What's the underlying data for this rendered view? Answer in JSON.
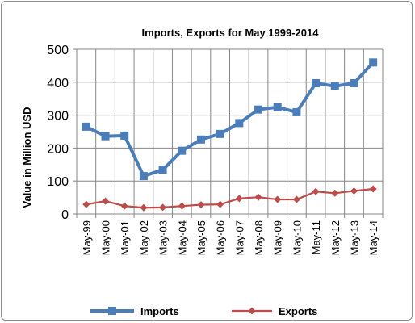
{
  "chart_data": {
    "type": "line",
    "title": "Imports, Exports for May 1999-2014",
    "xlabel": "",
    "ylabel": "Value in  Million  USD",
    "ylim": [
      0,
      500
    ],
    "yticks": [
      0,
      100,
      200,
      300,
      400,
      500
    ],
    "grid": true,
    "legend_position": "bottom",
    "categories": [
      "May-99",
      "May-00",
      "May-01",
      "May-02",
      "May-03",
      "May-04",
      "May-05",
      "May-06",
      "May-07",
      "May-08",
      "May-09",
      "May-10",
      "May-11",
      "May-12",
      "May-13",
      "May-14"
    ],
    "series": [
      {
        "name": "Imports",
        "color": "#4a7ebb",
        "marker": "square",
        "values": [
          265,
          236,
          238,
          115,
          134,
          192,
          226,
          243,
          276,
          317,
          324,
          309,
          397,
          388,
          397,
          460
        ]
      },
      {
        "name": "Exports",
        "color": "#be4b48",
        "marker": "diamond",
        "values": [
          29,
          39,
          24,
          19,
          20,
          24,
          28,
          29,
          47,
          51,
          44,
          44,
          68,
          63,
          70,
          76
        ]
      }
    ]
  }
}
